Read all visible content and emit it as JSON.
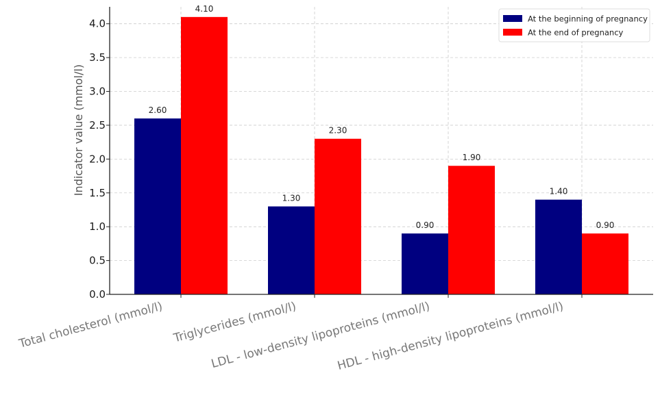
{
  "chart_data": {
    "type": "bar",
    "title": "",
    "xlabel": "",
    "ylabel": "Indicator value (mmol/l)",
    "ylim": [
      0,
      4.25
    ],
    "yticks": [
      0.0,
      0.5,
      1.0,
      1.5,
      2.0,
      2.5,
      3.0,
      3.5,
      4.0
    ],
    "ytick_labels": [
      "0.0",
      "0.5",
      "1.0",
      "1.5",
      "2.0",
      "2.5",
      "3.0",
      "3.5",
      "4.0"
    ],
    "grid": true,
    "legend_position": "top-right",
    "categories": [
      "Total cholesterol (mmol/l)",
      "Triglycerides (mmol/l)",
      "LDL - low-density lipoproteins (mmol/l)",
      "HDL - high-density lipoproteins (mmol/l)"
    ],
    "series": [
      {
        "name": "At the beginning of pregnancy",
        "color": "#000080",
        "values": [
          2.6,
          1.3,
          0.9,
          1.4
        ],
        "labels": [
          "2.60",
          "1.30",
          "0.90",
          "1.40"
        ]
      },
      {
        "name": "At the end of pregnancy",
        "color": "#ff0000",
        "values": [
          4.1,
          2.3,
          1.9,
          0.9
        ],
        "labels": [
          "4.10",
          "2.30",
          "1.90",
          "0.90"
        ]
      }
    ]
  }
}
